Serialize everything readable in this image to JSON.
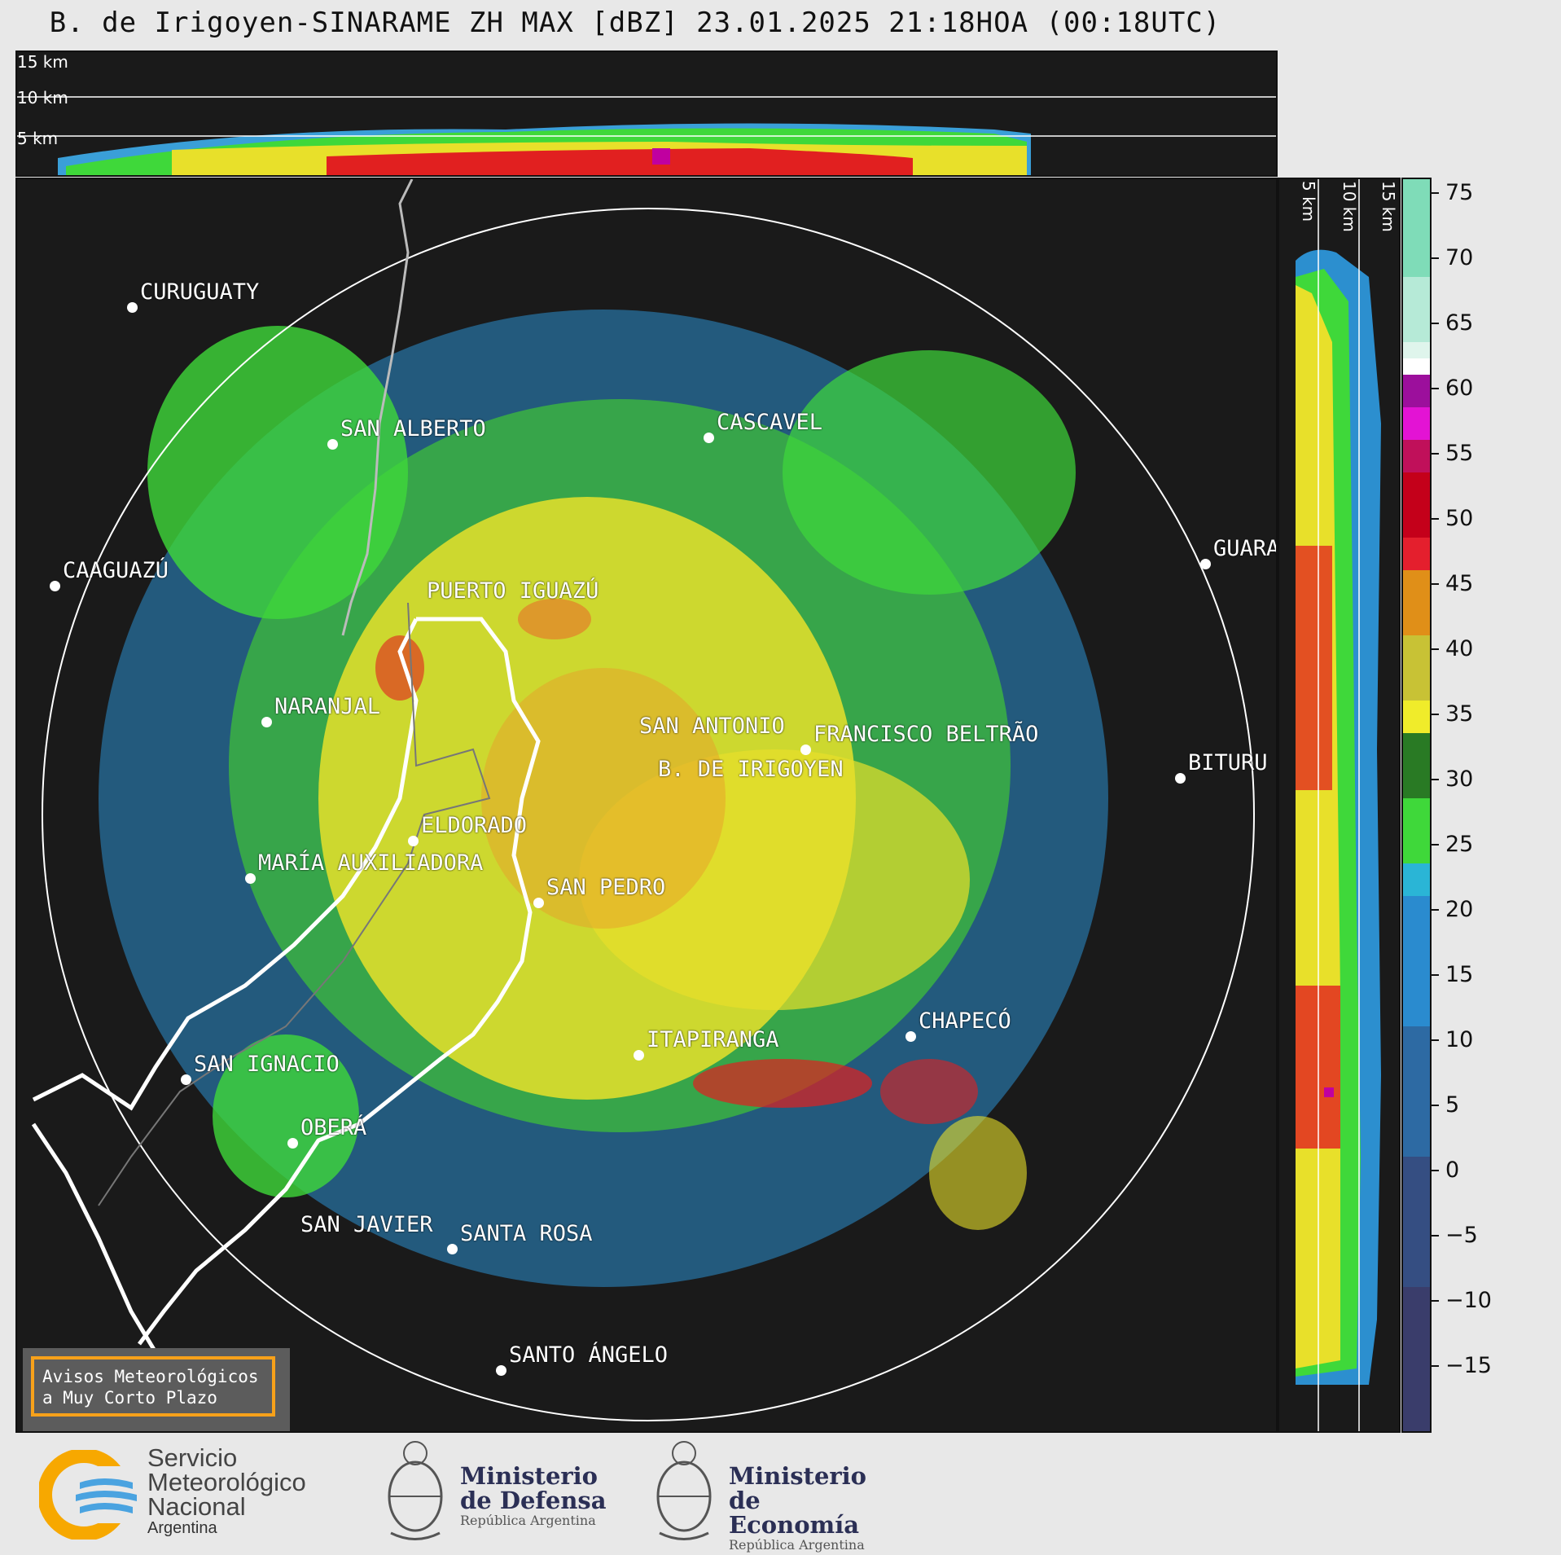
{
  "title": "B. de Irigoyen-SINARAME ZH MAX [dBZ] 23.01.2025 21:18HOA (00:18UTC)",
  "top_strip_labels": [
    "15 km",
    "10 km",
    "5 km"
  ],
  "right_strip_labels": [
    "5 km",
    "10 km",
    "15 km"
  ],
  "cities": [
    {
      "name": "CURUGUATY"
    },
    {
      "name": "SAN ALBERTO"
    },
    {
      "name": "CASCAVEL"
    },
    {
      "name": "CAAGUAZÚ"
    },
    {
      "name": "GUARA"
    },
    {
      "name": "PUERTO IGUAZÚ"
    },
    {
      "name": "NARANJAL"
    },
    {
      "name": "SAN ANTONIO"
    },
    {
      "name": "FRANCISCO BELTRÃO"
    },
    {
      "name": "B. DE IRIGOYEN"
    },
    {
      "name": "BITURU"
    },
    {
      "name": "ELDORADO"
    },
    {
      "name": "MARÍA AUXILIADORA"
    },
    {
      "name": "SAN PEDRO"
    },
    {
      "name": "CHAPECÓ"
    },
    {
      "name": "ITAPIRANGA"
    },
    {
      "name": "SAN IGNACIO"
    },
    {
      "name": "OBERÁ"
    },
    {
      "name": "SAN JAVIER"
    },
    {
      "name": "SANTA ROSA"
    },
    {
      "name": "SANTO ÁNGELO"
    }
  ],
  "colorbar": {
    "ticks": [
      "75",
      "70",
      "65",
      "60",
      "55",
      "50",
      "45",
      "40",
      "35",
      "30",
      "25",
      "20",
      "15",
      "10",
      "5",
      "0",
      "−5",
      "−10",
      "−15"
    ],
    "range": [
      -20,
      77
    ]
  },
  "avisos": {
    "line1": "Avisos Meteorológicos",
    "line2": "a Muy Corto Plazo"
  },
  "footer": {
    "smn": {
      "line1": "Servicio",
      "line2": "Meteorológico",
      "line3": "Nacional",
      "sub": "Argentina"
    },
    "defensa": {
      "line1": "Ministerio",
      "line2": "de Defensa",
      "sub": "República Argentina"
    },
    "economia": {
      "line1": "Ministerio",
      "line2": "de Economía",
      "sub": "República Argentina"
    }
  },
  "colors": {
    "background": "#1a1a1a",
    "frame": "#e8e8e8",
    "accent": "#f7a11a"
  }
}
